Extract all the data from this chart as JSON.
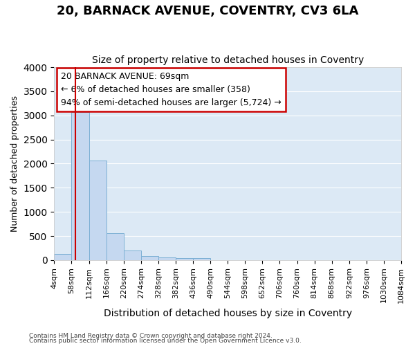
{
  "title": "20, BARNACK AVENUE, COVENTRY, CV3 6LA",
  "subtitle": "Size of property relative to detached houses in Coventry",
  "xlabel": "Distribution of detached houses by size in Coventry",
  "ylabel": "Number of detached properties",
  "bin_edges": [
    4,
    58,
    112,
    166,
    220,
    274,
    328,
    382,
    436,
    490,
    544,
    598,
    652,
    706,
    760,
    814,
    868,
    922,
    976,
    1030,
    1084
  ],
  "bar_heights": [
    130,
    3070,
    2060,
    560,
    200,
    85,
    60,
    45,
    45,
    0,
    0,
    0,
    0,
    0,
    0,
    0,
    0,
    0,
    0,
    0
  ],
  "bar_color": "#c5d8f0",
  "bar_edge_color": "#7bafd4",
  "vline_x": 69,
  "vline_color": "#cc0000",
  "ylim": [
    0,
    4000
  ],
  "annotation_line1": "20 BARNACK AVENUE: 69sqm",
  "annotation_line2": "← 6% of detached houses are smaller (358)",
  "annotation_line3": "94% of semi-detached houses are larger (5,724) →",
  "annotation_box_color": "#cc0000",
  "footer_line1": "Contains HM Land Registry data © Crown copyright and database right 2024.",
  "footer_line2": "Contains public sector information licensed under the Open Government Licence v3.0.",
  "fig_bg_color": "#ffffff",
  "plot_bg_color": "#dce9f5",
  "grid_color": "#ffffff",
  "title_fontsize": 13,
  "subtitle_fontsize": 10,
  "tick_label_fontsize": 8,
  "ylabel_fontsize": 9,
  "xlabel_fontsize": 10
}
